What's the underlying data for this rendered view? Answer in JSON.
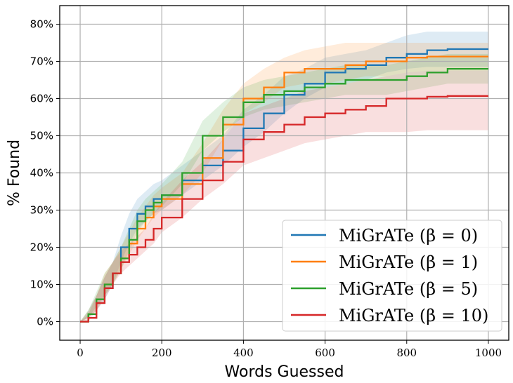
{
  "chart_data": {
    "type": "line",
    "xlabel": "Words Guessed",
    "ylabel": "% Found",
    "xlim": [
      -50,
      1050
    ],
    "ylim": [
      -5,
      85
    ],
    "xticks": [
      0,
      200,
      400,
      600,
      800,
      1000
    ],
    "yticks": [
      0,
      10,
      20,
      30,
      40,
      50,
      60,
      70,
      80
    ],
    "ytick_labels": [
      "0%",
      "10%",
      "20%",
      "30%",
      "40%",
      "50%",
      "60%",
      "70%",
      "80%"
    ],
    "grid": true,
    "legend_position": "lower-right",
    "series": [
      {
        "name": "MiGrATe (β = 0)",
        "color": "#1f77b4",
        "x": [
          0,
          20,
          40,
          60,
          80,
          100,
          120,
          140,
          160,
          180,
          200,
          250,
          300,
          350,
          400,
          450,
          500,
          550,
          600,
          650,
          700,
          750,
          800,
          850,
          900,
          1000
        ],
        "y": [
          0,
          2,
          5,
          9,
          13,
          20,
          25,
          29,
          31,
          33,
          34,
          38,
          42,
          46,
          52,
          56,
          61,
          64,
          67,
          68,
          69,
          71,
          72,
          73,
          73.3,
          73.3
        ],
        "band_low": [
          0,
          1,
          3,
          6,
          10,
          16,
          21,
          25,
          27,
          29,
          30,
          34,
          38,
          42,
          47,
          51,
          56,
          60,
          63,
          64,
          65,
          67,
          68,
          68.5,
          68.5,
          68.5
        ],
        "band_high": [
          0,
          3,
          7,
          12,
          16,
          23,
          29,
          33,
          35,
          37,
          38,
          42,
          46,
          50,
          57,
          61,
          66,
          68,
          71,
          72,
          73,
          75,
          77,
          78,
          78,
          78
        ]
      },
      {
        "name": "MiGrATe (β = 1)",
        "color": "#ff7f0e",
        "x": [
          0,
          20,
          40,
          60,
          80,
          100,
          120,
          140,
          160,
          180,
          200,
          250,
          300,
          350,
          400,
          450,
          500,
          550,
          600,
          650,
          700,
          750,
          800,
          850,
          900,
          1000
        ],
        "y": [
          0,
          2,
          5,
          10,
          13,
          17,
          21,
          25,
          28,
          31,
          33,
          37,
          44,
          53,
          60,
          63,
          67,
          68,
          68,
          69,
          70,
          70,
          71,
          71.3,
          71.3,
          71.3
        ],
        "band_low": [
          0,
          1,
          3,
          7,
          10,
          14,
          18,
          22,
          25,
          28,
          30,
          34,
          40,
          49,
          56,
          59,
          63,
          64,
          64,
          65,
          66,
          66,
          67,
          67.5,
          67.5,
          67.5
        ],
        "band_high": [
          0,
          3,
          7,
          13,
          16,
          20,
          24,
          28,
          31,
          34,
          36,
          40,
          48,
          57,
          64,
          68,
          71,
          73,
          74,
          75,
          75,
          75,
          75,
          75,
          75,
          75
        ]
      },
      {
        "name": "MiGrATe (β = 5)",
        "color": "#2ca02c",
        "x": [
          0,
          20,
          40,
          60,
          80,
          100,
          120,
          140,
          160,
          180,
          200,
          250,
          300,
          350,
          400,
          450,
          500,
          550,
          600,
          650,
          700,
          750,
          800,
          850,
          900,
          1000
        ],
        "y": [
          0,
          2,
          6,
          10,
          13,
          17,
          22,
          27,
          30,
          32,
          34,
          40,
          50,
          55,
          59,
          61,
          62,
          63,
          64,
          65,
          65,
          65,
          66,
          67,
          68,
          68
        ],
        "band_low": [
          0,
          1,
          4,
          7,
          10,
          14,
          19,
          24,
          27,
          29,
          31,
          37,
          46,
          51,
          55,
          57,
          58,
          59,
          60,
          61,
          61,
          61,
          62,
          63,
          64,
          64
        ],
        "band_high": [
          0,
          3,
          8,
          13,
          16,
          20,
          25,
          30,
          33,
          35,
          37,
          43,
          54,
          59,
          63,
          65,
          66,
          67,
          68,
          69,
          69,
          69,
          70,
          71,
          72,
          72
        ]
      },
      {
        "name": "MiGrATe (β = 10)",
        "color": "#d62728",
        "x": [
          0,
          20,
          40,
          60,
          80,
          100,
          120,
          140,
          160,
          180,
          200,
          250,
          300,
          350,
          400,
          450,
          500,
          550,
          600,
          650,
          700,
          750,
          800,
          850,
          900,
          1000
        ],
        "y": [
          0,
          1,
          5,
          9,
          13,
          16,
          18,
          20,
          22,
          25,
          28,
          33,
          38,
          43,
          49,
          51,
          53,
          55,
          56,
          57,
          58,
          60,
          60,
          60.5,
          60.7,
          60.7
        ],
        "band_low": [
          0,
          0,
          3,
          6,
          10,
          13,
          15,
          17,
          19,
          21,
          24,
          28,
          33,
          37,
          42,
          44,
          46,
          48,
          49,
          50,
          51,
          51,
          51,
          51.5,
          51.5,
          51.5
        ],
        "band_high": [
          0,
          2,
          7,
          12,
          16,
          19,
          21,
          23,
          25,
          29,
          32,
          38,
          43,
          49,
          56,
          58,
          60,
          62,
          63,
          64,
          65,
          66,
          67,
          67.5,
          67.5,
          67.5
        ]
      }
    ]
  }
}
